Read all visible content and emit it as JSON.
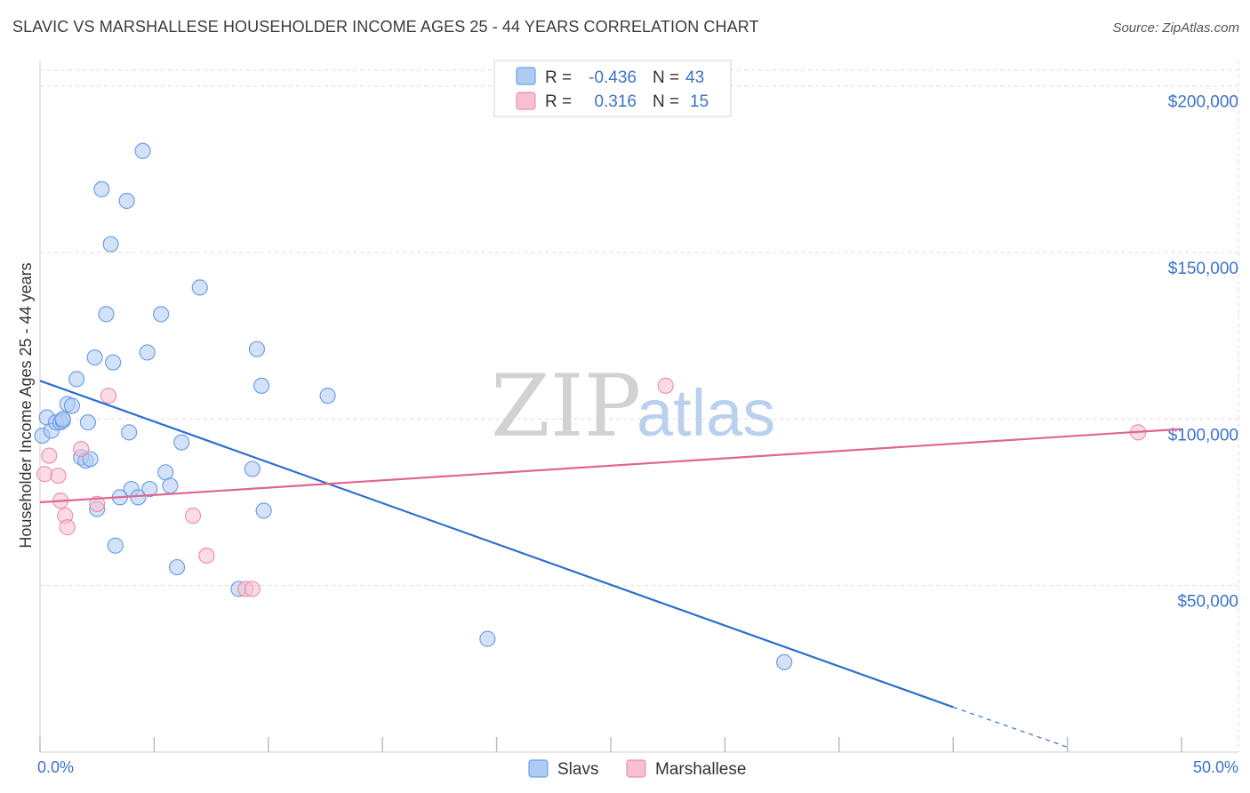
{
  "title": "SLAVIC VS MARSHALLESE HOUSEHOLDER INCOME AGES 25 - 44 YEARS CORRELATION CHART",
  "source": "Source: ZipAtlas.com",
  "watermark": {
    "zip": "ZIP",
    "atlas": "atlas"
  },
  "colors": {
    "slavs": "#6ea0e6",
    "slavs_fill": "#aecbf3",
    "slavs_line": "#2f6fd0",
    "marshallese": "#ee91ae",
    "marshallese_fill": "#f7bfd0",
    "marshallese_line": "#e0668f",
    "tick": "#3a73c9"
  },
  "legend": {
    "rows": [
      {
        "r_label": "R =",
        "r_value": "-0.436",
        "n_label": "N =",
        "n_value": "43"
      },
      {
        "r_label": "R =",
        "r_value": "0.316",
        "n_label": "N =",
        "n_value": "15"
      }
    ]
  },
  "bottom_legend": [
    "Slavs",
    "Marshallese"
  ],
  "chart_data": {
    "type": "scatter",
    "title": "SLAVIC VS MARSHALLESE HOUSEHOLDER INCOME AGES 25 - 44 YEARS CORRELATION CHART",
    "xlabel": "",
    "ylabel": "Householder Income Ages 25 - 44 years",
    "xlim": [
      0,
      50
    ],
    "ylim": [
      0,
      205000
    ],
    "x_tick_labels": [
      "0.0%",
      "50.0%"
    ],
    "y_ticks": [
      50000,
      100000,
      150000,
      200000
    ],
    "y_tick_labels": [
      "$50,000",
      "$100,000",
      "$150,000",
      "$200,000"
    ],
    "series": [
      {
        "name": "Slavs",
        "r": -0.436,
        "n": 43,
        "trend": {
          "x0": 0,
          "y0": 111500,
          "x1": 40,
          "y1": 13500,
          "dash_x1": 45,
          "dash_y1": 1500
        },
        "points": [
          [
            0.1,
            95000
          ],
          [
            0.3,
            100500
          ],
          [
            0.5,
            96500
          ],
          [
            0.7,
            99000
          ],
          [
            0.9,
            99000
          ],
          [
            1.0,
            99500
          ],
          [
            1.2,
            104500
          ],
          [
            1.4,
            104000
          ],
          [
            1.6,
            112000
          ],
          [
            1.8,
            88500
          ],
          [
            2.0,
            87500
          ],
          [
            2.2,
            88000
          ],
          [
            2.4,
            118500
          ],
          [
            2.5,
            73000
          ],
          [
            2.7,
            169000
          ],
          [
            2.9,
            131500
          ],
          [
            3.1,
            152500
          ],
          [
            3.2,
            117000
          ],
          [
            3.3,
            62000
          ],
          [
            3.5,
            76500
          ],
          [
            3.8,
            165500
          ],
          [
            3.9,
            96000
          ],
          [
            4.0,
            79000
          ],
          [
            4.3,
            76500
          ],
          [
            4.5,
            180500
          ],
          [
            4.7,
            120000
          ],
          [
            4.8,
            79000
          ],
          [
            5.3,
            131500
          ],
          [
            5.5,
            84000
          ],
          [
            5.7,
            80000
          ],
          [
            6.0,
            55500
          ],
          [
            6.2,
            93000
          ],
          [
            7.0,
            139500
          ],
          [
            8.7,
            49000
          ],
          [
            9.3,
            85000
          ],
          [
            9.5,
            121000
          ],
          [
            9.7,
            110000
          ],
          [
            9.8,
            72500
          ],
          [
            12.6,
            107000
          ],
          [
            19.6,
            34000
          ],
          [
            32.6,
            27000
          ],
          [
            1.0,
            100000
          ],
          [
            2.1,
            99000
          ]
        ]
      },
      {
        "name": "Marshallese",
        "r": 0.316,
        "n": 15,
        "trend": {
          "x0": 0,
          "y0": 75000,
          "x1": 50,
          "y1": 97000
        },
        "points": [
          [
            0.2,
            83500
          ],
          [
            0.4,
            89000
          ],
          [
            0.8,
            83000
          ],
          [
            0.9,
            75500
          ],
          [
            1.1,
            71000
          ],
          [
            1.2,
            67500
          ],
          [
            1.8,
            91000
          ],
          [
            2.5,
            74500
          ],
          [
            3.0,
            107000
          ],
          [
            6.7,
            71000
          ],
          [
            7.3,
            59000
          ],
          [
            9.0,
            49000
          ],
          [
            9.3,
            49000
          ],
          [
            27.4,
            110000
          ],
          [
            48.1,
            96000
          ]
        ]
      }
    ]
  }
}
